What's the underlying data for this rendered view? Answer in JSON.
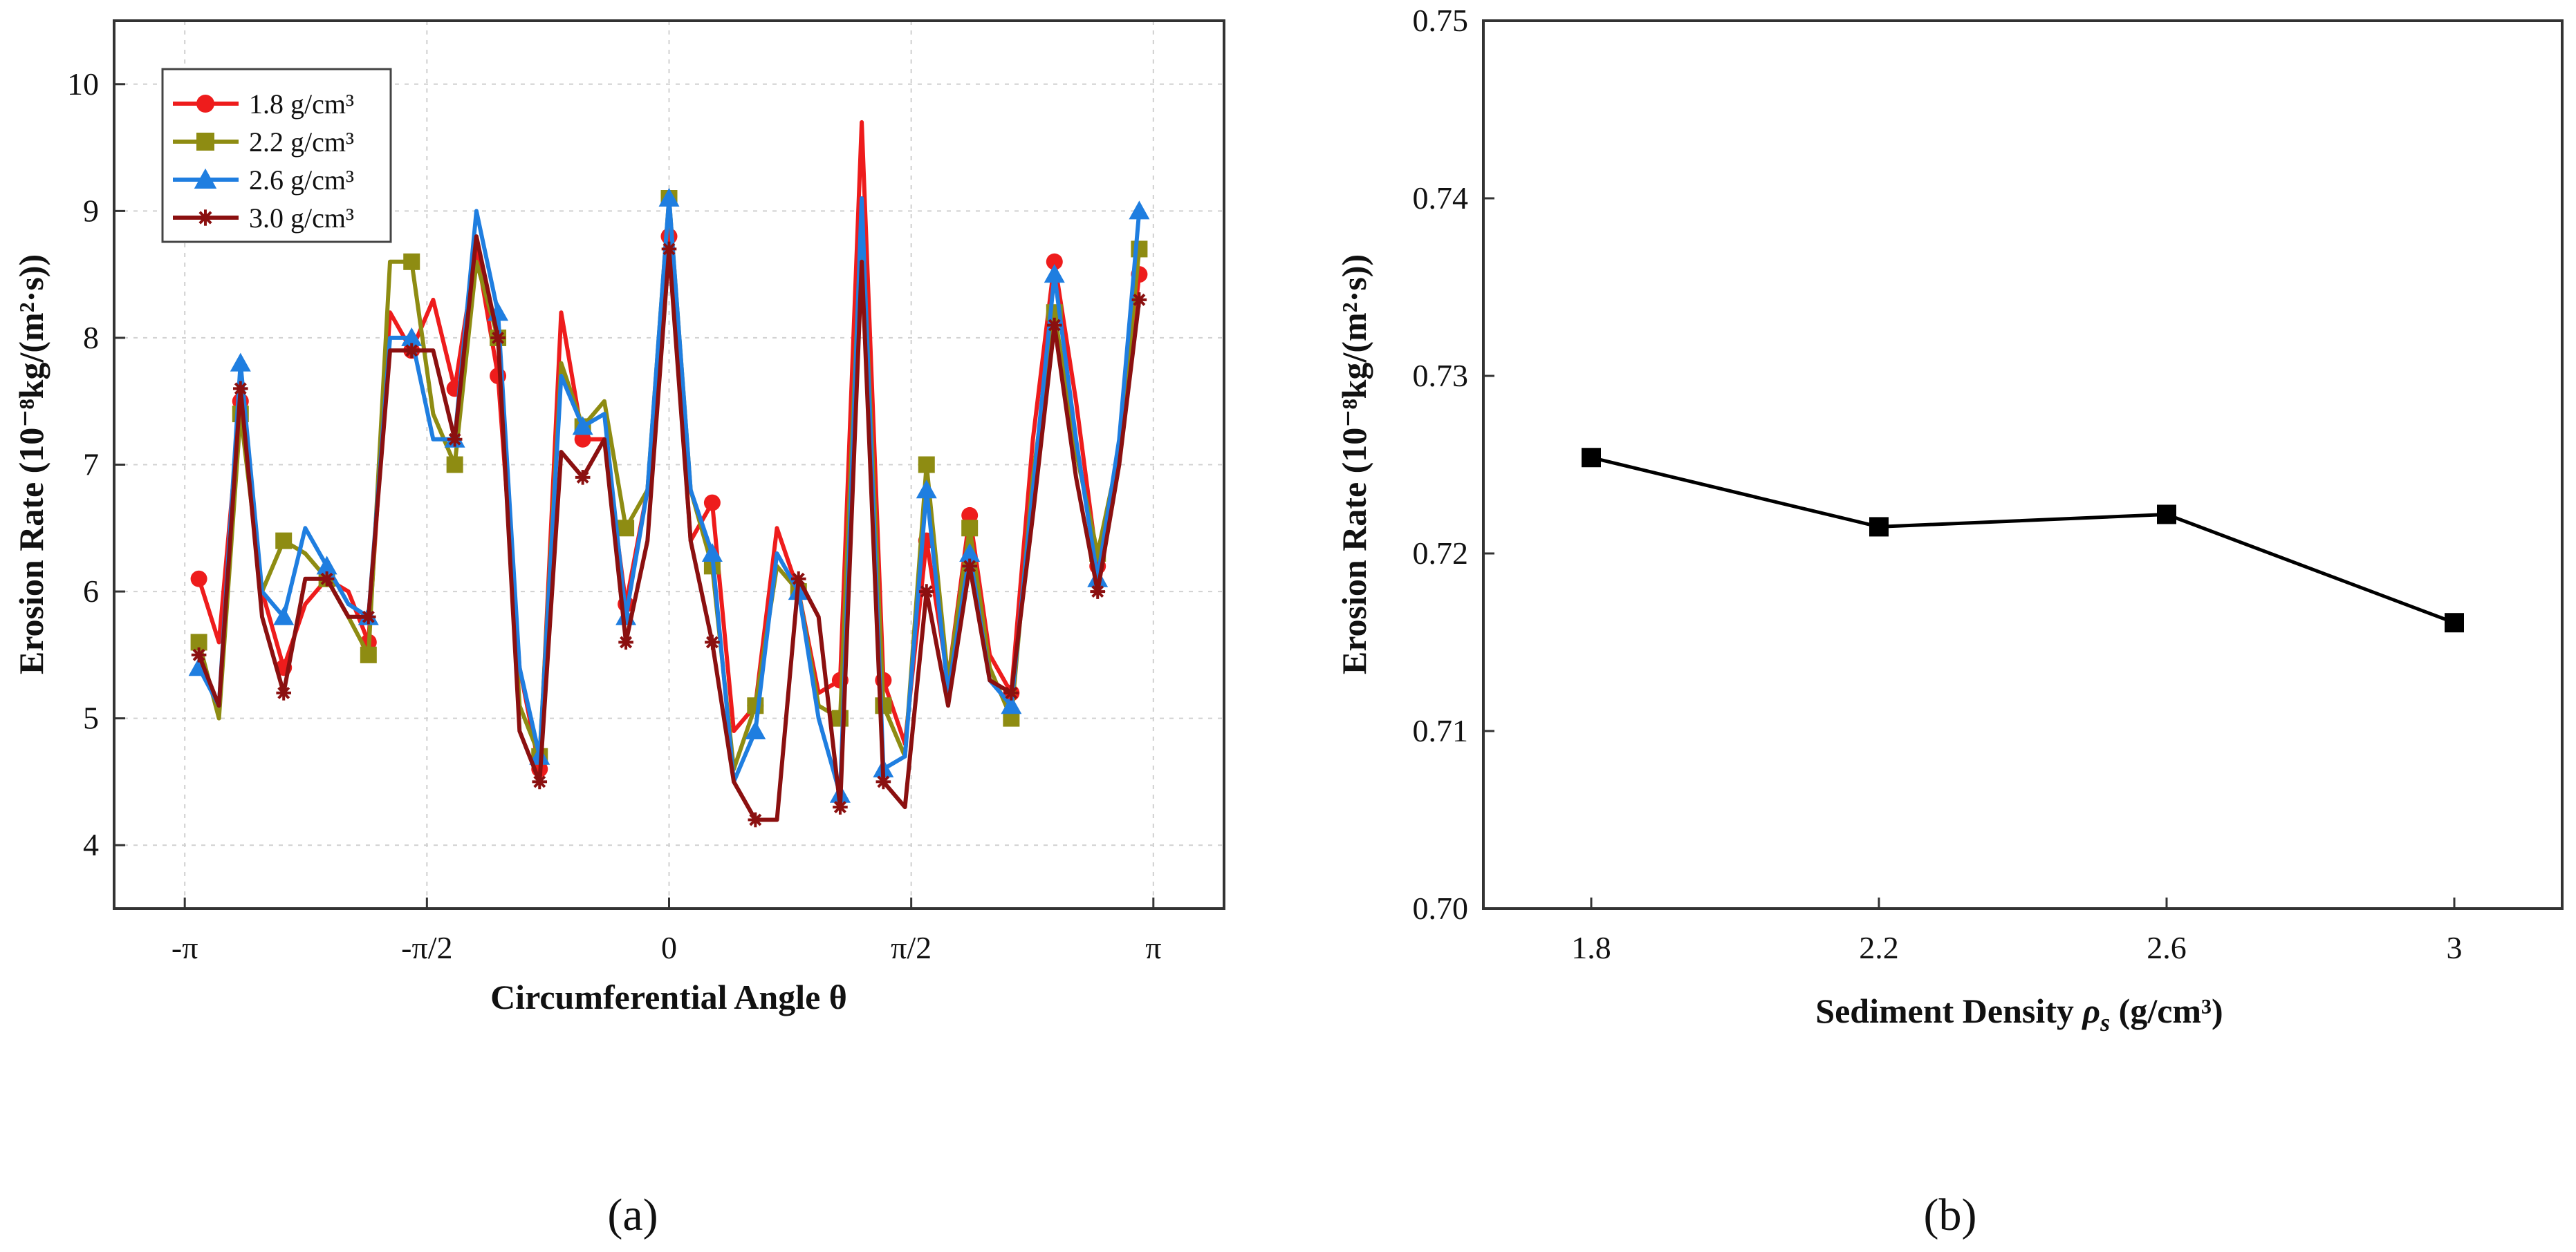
{
  "chart_data": [
    {
      "panel": "a",
      "type": "line",
      "xlabel": "Circumferential Angle θ",
      "ylabel": "Erosion Rate (10⁻⁸kg/(m²·s))",
      "ylim": [
        3.5,
        10.5
      ],
      "xlim": [
        -3.6,
        3.6
      ],
      "yticks": [
        4,
        5,
        6,
        7,
        8,
        9,
        10
      ],
      "xticks": [
        {
          "value": -3.1416,
          "label": "-π"
        },
        {
          "value": -1.5708,
          "label": "-π/2"
        },
        {
          "value": 0,
          "label": "0"
        },
        {
          "value": 1.5708,
          "label": "π/2"
        },
        {
          "value": 3.1416,
          "label": "π"
        }
      ],
      "grid": true,
      "legend_position": "top-left",
      "x": [
        -3.05,
        -2.92,
        -2.78,
        -2.64,
        -2.5,
        -2.36,
        -2.22,
        -2.08,
        -1.95,
        -1.81,
        -1.67,
        -1.53,
        -1.39,
        -1.25,
        -1.11,
        -0.97,
        -0.84,
        -0.7,
        -0.56,
        -0.42,
        -0.28,
        -0.14,
        0.0,
        0.14,
        0.28,
        0.42,
        0.56,
        0.7,
        0.84,
        0.97,
        1.11,
        1.25,
        1.39,
        1.53,
        1.67,
        1.81,
        1.95,
        2.08,
        2.22,
        2.36,
        2.5,
        2.64,
        2.78,
        2.92,
        3.05
      ],
      "series": [
        {
          "name": "1.8 g/cm³",
          "color": "#ee1c1c",
          "marker": "circle",
          "values": [
            6.1,
            5.6,
            7.5,
            6.0,
            5.4,
            5.9,
            6.1,
            6.0,
            5.6,
            8.2,
            7.9,
            8.3,
            7.6,
            8.7,
            7.7,
            5.4,
            4.6,
            8.2,
            7.2,
            7.2,
            5.9,
            6.8,
            8.8,
            6.4,
            6.7,
            4.9,
            5.1,
            6.5,
            6.0,
            5.2,
            5.3,
            9.7,
            5.3,
            4.8,
            6.4,
            5.3,
            6.6,
            5.5,
            5.2,
            7.2,
            8.6,
            7.5,
            6.2,
            7.1,
            8.5
          ]
        },
        {
          "name": "2.2 g/cm³",
          "color": "#8e8c12",
          "marker": "square",
          "values": [
            5.6,
            5.0,
            7.4,
            6.0,
            6.4,
            6.3,
            6.1,
            5.8,
            5.5,
            8.6,
            8.6,
            7.4,
            7.0,
            8.6,
            8.0,
            5.1,
            4.7,
            7.8,
            7.3,
            7.5,
            6.5,
            6.8,
            9.1,
            6.8,
            6.2,
            4.6,
            5.1,
            6.2,
            6.0,
            5.1,
            5.0,
            9.0,
            5.1,
            4.7,
            7.0,
            5.3,
            6.5,
            5.4,
            5.0,
            6.9,
            8.2,
            7.1,
            6.3,
            7.1,
            8.7
          ]
        },
        {
          "name": "2.6 g/cm³",
          "color": "#1f7ee0",
          "marker": "triangle",
          "values": [
            5.4,
            5.1,
            7.8,
            6.0,
            5.8,
            6.5,
            6.2,
            5.9,
            5.8,
            8.0,
            8.0,
            7.2,
            7.2,
            9.0,
            8.2,
            5.4,
            4.7,
            7.7,
            7.3,
            7.4,
            5.8,
            6.8,
            9.1,
            6.8,
            6.3,
            4.5,
            4.9,
            6.3,
            6.0,
            5.0,
            4.4,
            9.1,
            4.6,
            4.7,
            6.8,
            5.2,
            6.3,
            5.3,
            5.1,
            6.8,
            8.5,
            7.2,
            6.1,
            7.2,
            9.0
          ]
        },
        {
          "name": "3.0 g/cm³",
          "color": "#8b1010",
          "marker": "star",
          "values": [
            5.5,
            5.1,
            7.6,
            5.8,
            5.2,
            6.1,
            6.1,
            5.8,
            5.8,
            7.9,
            7.9,
            7.9,
            7.2,
            8.8,
            8.0,
            4.9,
            4.5,
            7.1,
            6.9,
            7.2,
            5.6,
            6.4,
            8.7,
            6.4,
            5.6,
            4.5,
            4.2,
            4.2,
            6.1,
            5.8,
            4.3,
            8.6,
            4.5,
            4.3,
            6.0,
            5.1,
            6.2,
            5.3,
            5.2,
            6.6,
            8.1,
            6.9,
            6.0,
            7.0,
            8.3
          ]
        }
      ]
    },
    {
      "panel": "b",
      "type": "line",
      "xlabel_main": "Sediment Density ",
      "xlabel_symbol": "ρ",
      "xlabel_subscript": "s",
      "xlabel_unit": " (g/cm³)",
      "ylabel": "Erosion Rate (10⁻⁸kg/(m²·s))",
      "xlim": [
        1.65,
        3.15
      ],
      "ylim": [
        0.7,
        0.75
      ],
      "yticks": [
        "0.70",
        "0.71",
        "0.72",
        "0.73",
        "0.74",
        "0.75"
      ],
      "xticks": [
        "1.8",
        "2.2",
        "2.6",
        "3"
      ],
      "x": [
        1.8,
        2.2,
        2.6,
        3.0
      ],
      "values": [
        0.7254,
        0.7215,
        0.7222,
        0.7161
      ],
      "line_color": "#000000",
      "marker": "square"
    }
  ],
  "labels": {
    "panel_a": "(a)",
    "panel_b": "(b)"
  }
}
